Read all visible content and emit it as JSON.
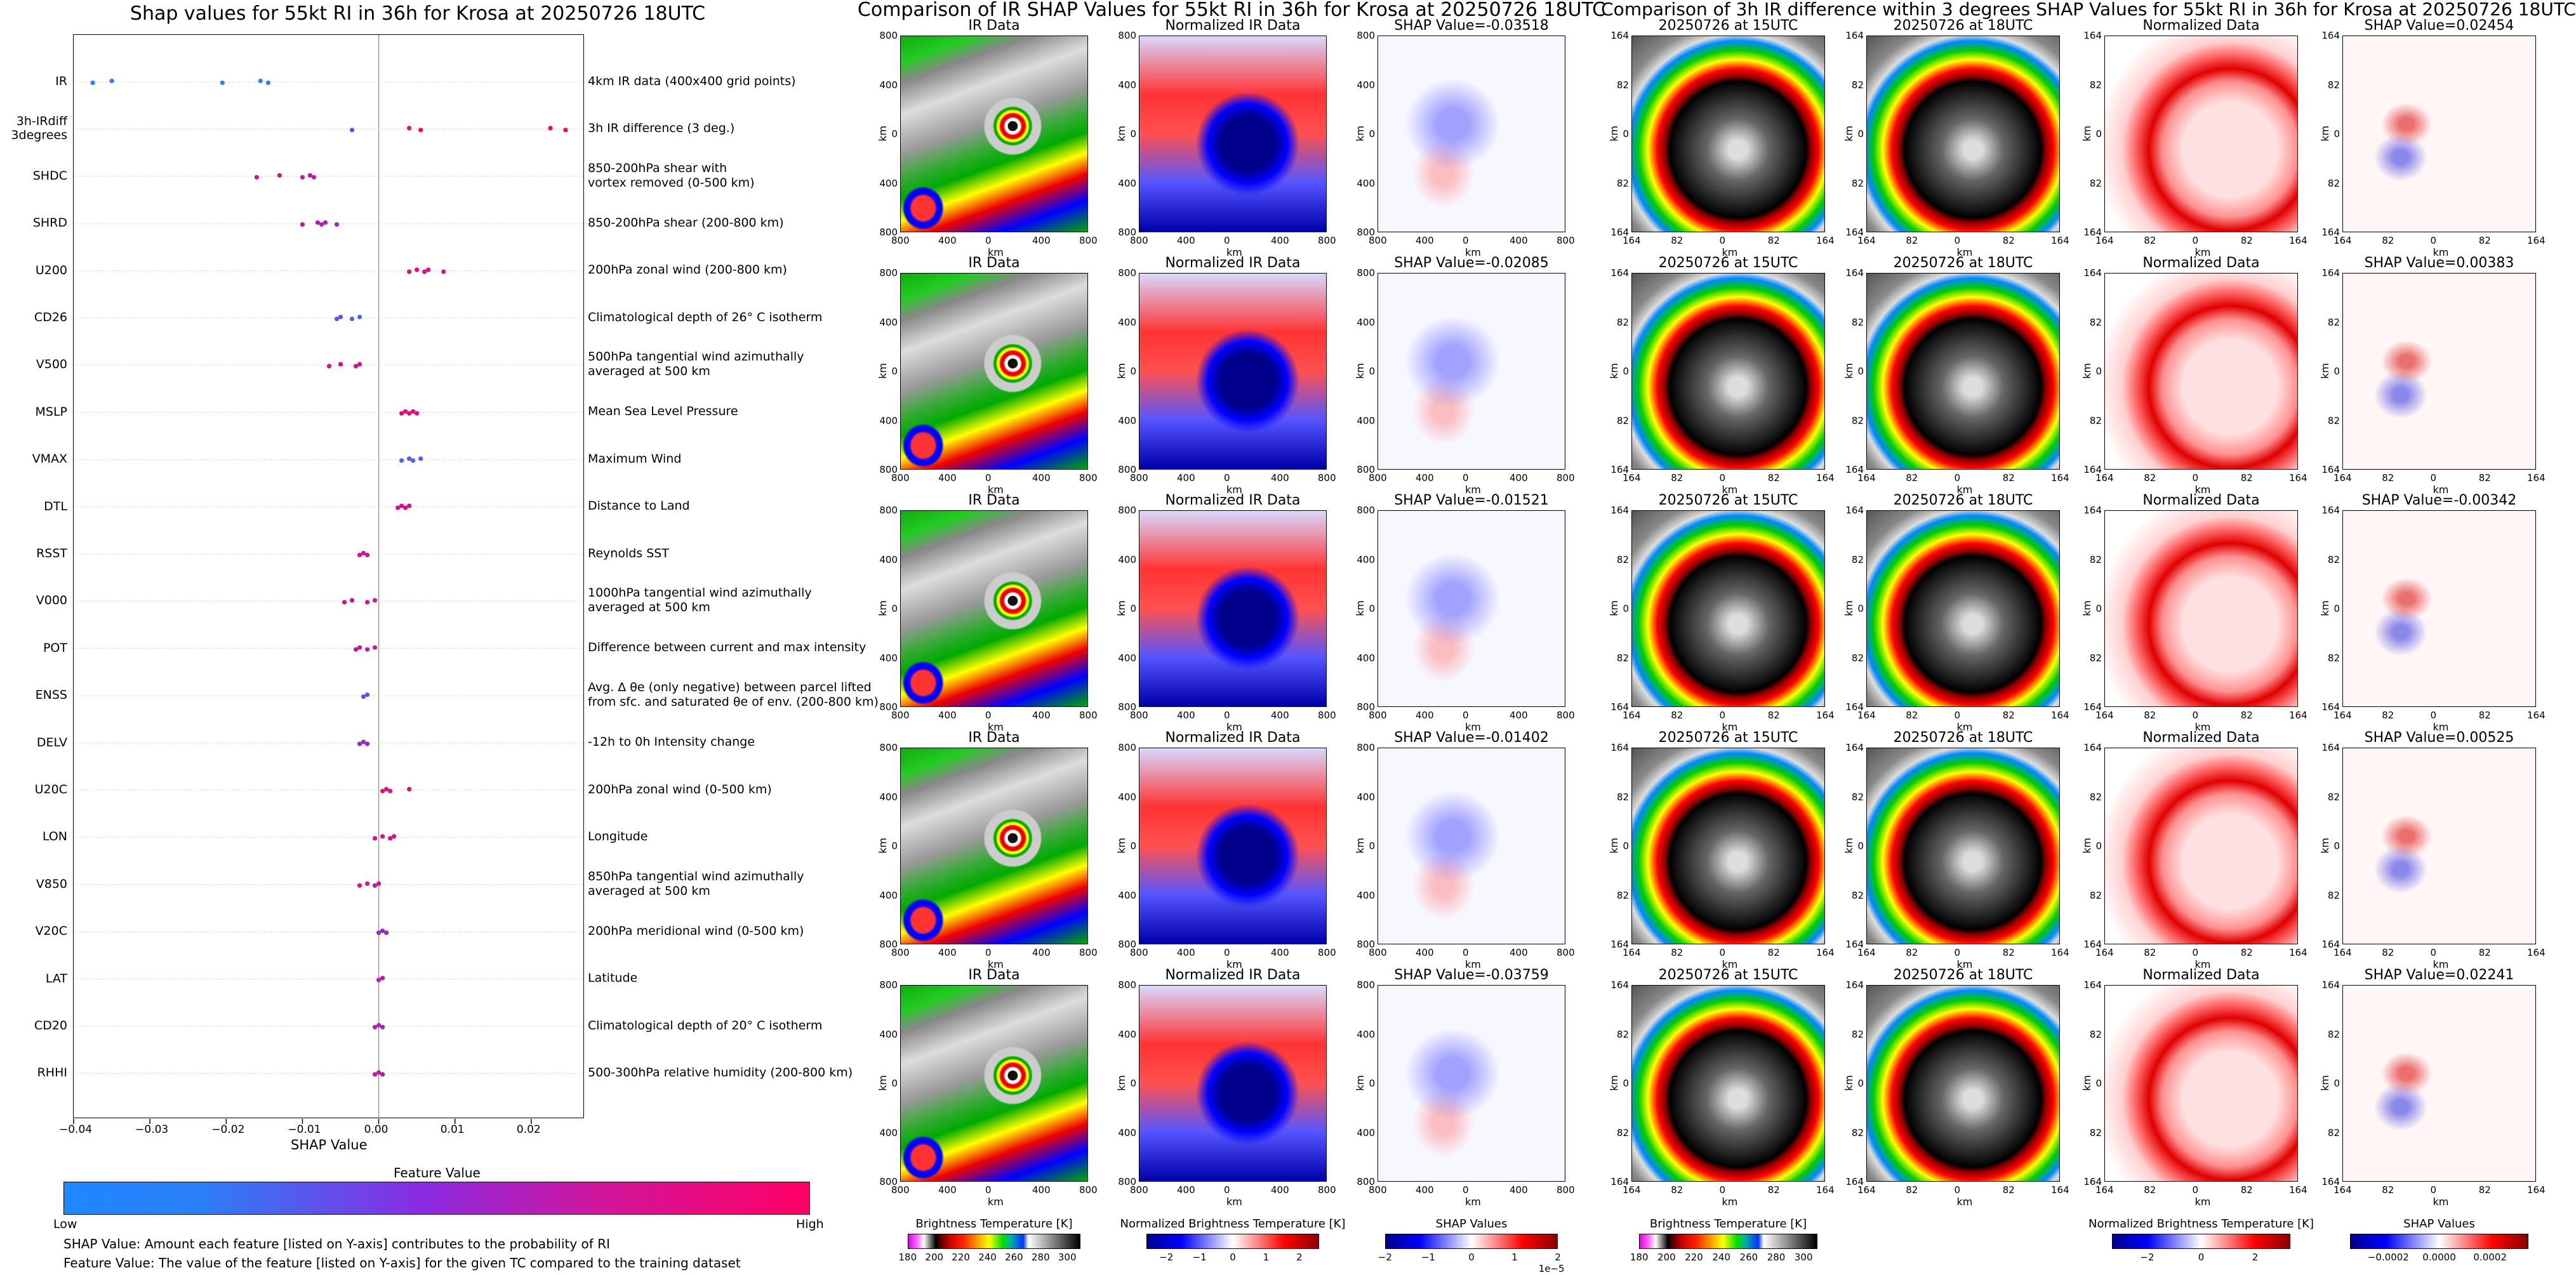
{
  "chart_data": [
    {
      "type": "scatter",
      "title": "Shap values for 55kt RI in 36h for Krosa at 20250726 18UTC",
      "xlabel": "SHAP Value",
      "xlim": [
        -0.04,
        0.027
      ],
      "x_ticks": [
        "−0.04",
        "−0.03",
        "−0.02",
        "−0.01",
        "0.00",
        "0.01",
        "0.02"
      ],
      "x_tick_values": [
        -0.04,
        -0.03,
        -0.02,
        -0.01,
        0.0,
        0.01,
        0.02
      ],
      "features": [
        {
          "name": "IR",
          "desc": "4km IR data (400x400 grid points)",
          "points": [
            [
              -0.0375,
              0.0
            ],
            [
              -0.035,
              0.1
            ],
            [
              -0.0205,
              0.0
            ],
            [
              -0.0155,
              0.0
            ],
            [
              -0.0145,
              0.05
            ]
          ]
        },
        {
          "name": "3h-IRdiff\n3degrees",
          "desc": "3h IR difference (3 deg.)",
          "points": [
            [
              -0.0035,
              0.35
            ],
            [
              0.004,
              0.9
            ],
            [
              0.0055,
              0.95
            ],
            [
              0.0225,
              1.0
            ],
            [
              0.0245,
              1.0
            ]
          ]
        },
        {
          "name": "SHDC",
          "desc": "850-200hPa shear with\nvortex removed (0-500 km)",
          "points": [
            [
              -0.016,
              0.85
            ],
            [
              -0.013,
              0.8
            ],
            [
              -0.01,
              0.75
            ],
            [
              -0.009,
              0.75
            ],
            [
              -0.0085,
              0.7
            ]
          ]
        },
        {
          "name": "SHRD",
          "desc": "850-200hPa shear (200-800 km)",
          "points": [
            [
              -0.01,
              0.8
            ],
            [
              -0.008,
              0.7
            ],
            [
              -0.0075,
              0.7
            ],
            [
              -0.007,
              0.65
            ],
            [
              -0.0055,
              0.6
            ]
          ]
        },
        {
          "name": "U200",
          "desc": "200hPa zonal wind (200-800 km)",
          "points": [
            [
              0.004,
              0.95
            ],
            [
              0.005,
              0.9
            ],
            [
              0.006,
              0.9
            ],
            [
              0.0065,
              0.85
            ],
            [
              0.0085,
              0.8
            ]
          ]
        },
        {
          "name": "CD26",
          "desc": "Climatological depth of 26° C isotherm",
          "points": [
            [
              -0.0055,
              0.25
            ],
            [
              -0.005,
              0.3
            ],
            [
              -0.0035,
              0.2
            ],
            [
              -0.0025,
              0.15
            ]
          ]
        },
        {
          "name": "V500",
          "desc": "500hPa tangential wind azimuthally\naveraged at 500 km",
          "points": [
            [
              -0.0065,
              0.85
            ],
            [
              -0.005,
              0.9
            ],
            [
              -0.003,
              0.85
            ],
            [
              -0.0025,
              0.8
            ]
          ]
        },
        {
          "name": "MSLP",
          "desc": "Mean Sea Level Pressure",
          "points": [
            [
              0.003,
              0.9
            ],
            [
              0.0035,
              0.9
            ],
            [
              0.004,
              0.9
            ],
            [
              0.0045,
              0.85
            ],
            [
              0.005,
              0.85
            ]
          ]
        },
        {
          "name": "VMAX",
          "desc": "Maximum Wind",
          "points": [
            [
              0.003,
              0.2
            ],
            [
              0.004,
              0.25
            ],
            [
              0.0045,
              0.15
            ],
            [
              0.0055,
              0.2
            ]
          ]
        },
        {
          "name": "DTL",
          "desc": "Distance to Land",
          "points": [
            [
              0.0025,
              0.85
            ],
            [
              0.003,
              0.9
            ],
            [
              0.0035,
              0.85
            ],
            [
              0.004,
              0.9
            ]
          ]
        },
        {
          "name": "RSST",
          "desc": "Reynolds SST",
          "points": [
            [
              -0.0025,
              0.85
            ],
            [
              -0.002,
              0.8
            ],
            [
              -0.0015,
              0.8
            ]
          ]
        },
        {
          "name": "V000",
          "desc": "1000hPa tangential wind azimuthally\naveraged at 500 km",
          "points": [
            [
              -0.0045,
              0.8
            ],
            [
              -0.0035,
              0.85
            ],
            [
              -0.0015,
              0.8
            ],
            [
              -0.0005,
              0.75
            ]
          ]
        },
        {
          "name": "POT",
          "desc": "Difference between current and max intensity",
          "points": [
            [
              -0.003,
              0.75
            ],
            [
              -0.0025,
              0.8
            ],
            [
              -0.0015,
              0.7
            ],
            [
              -0.0005,
              0.75
            ]
          ]
        },
        {
          "name": "ENSS",
          "desc": "Avg. Δ θe (only negative) between parcel lifted\nfrom sfc. and saturated θe of env. (200-800 km)",
          "points": [
            [
              -0.002,
              0.35
            ],
            [
              -0.0015,
              0.3
            ]
          ]
        },
        {
          "name": "DELV",
          "desc": "-12h to 0h Intensity change",
          "points": [
            [
              -0.0025,
              0.6
            ],
            [
              -0.002,
              0.55
            ],
            [
              -0.0015,
              0.6
            ]
          ]
        },
        {
          "name": "U20C",
          "desc": "200hPa zonal wind (0-500 km)",
          "points": [
            [
              0.0005,
              0.9
            ],
            [
              0.001,
              0.85
            ],
            [
              0.0015,
              0.9
            ],
            [
              0.004,
              0.95
            ]
          ]
        },
        {
          "name": "LON",
          "desc": "Longitude",
          "points": [
            [
              -0.0005,
              0.85
            ],
            [
              0.0005,
              0.9
            ],
            [
              0.0015,
              0.85
            ],
            [
              0.002,
              0.9
            ]
          ]
        },
        {
          "name": "V850",
          "desc": "850hPa tangential wind azimuthally\naveraged at 500 km",
          "points": [
            [
              -0.0025,
              0.8
            ],
            [
              -0.0015,
              0.85
            ],
            [
              -0.0005,
              0.75
            ],
            [
              0.0,
              0.8
            ]
          ]
        },
        {
          "name": "V20C",
          "desc": "200hPa meridional wind (0-500 km)",
          "points": [
            [
              0.0,
              0.6
            ],
            [
              0.0005,
              0.55
            ],
            [
              0.001,
              0.6
            ]
          ]
        },
        {
          "name": "LAT",
          "desc": "Latitude",
          "points": [
            [
              0.0,
              0.7
            ],
            [
              0.0005,
              0.75
            ]
          ]
        },
        {
          "name": "CD20",
          "desc": "Climatological depth of 20° C isotherm",
          "points": [
            [
              -0.0005,
              0.65
            ],
            [
              0.0,
              0.7
            ],
            [
              0.0005,
              0.65
            ]
          ]
        },
        {
          "name": "RHHI",
          "desc": "500-300hPa relative humidity (200-800 km)",
          "points": [
            [
              -0.0005,
              0.75
            ],
            [
              0.0,
              0.7
            ],
            [
              0.0005,
              0.75
            ]
          ]
        }
      ],
      "colorbar": {
        "label": "Feature Value",
        "low": "Low",
        "high": "High",
        "colors": [
          "#1e88ff",
          "#8a2be2",
          "#ff0064"
        ]
      }
    },
    {
      "type": "heatmap",
      "title": "Comparison of IR SHAP Values for 55kt RI in 36h for Krosa at 20250726 18UTC",
      "columns": [
        {
          "titles": [
            "IR Data",
            "IR Data",
            "IR Data",
            "IR Data",
            "IR Data"
          ]
        },
        {
          "titles": [
            "Normalized IR Data",
            "Normalized IR Data",
            "Normalized IR Data",
            "Normalized IR Data",
            "Normalized IR Data"
          ]
        },
        {
          "titles": [
            "SHAP Value=-0.03518",
            "SHAP Value=-0.02085",
            "SHAP Value=-0.01521",
            "SHAP Value=-0.01402",
            "SHAP Value=-0.03759"
          ]
        }
      ],
      "axis": {
        "xlabel": "km",
        "ylabel": "km",
        "xticks": [
          "800",
          "400",
          "0",
          "400",
          "800"
        ],
        "yticks": [
          "800",
          "400",
          "0",
          "400",
          "800"
        ]
      },
      "colorbars": [
        {
          "label": "Brightness Temperature [K]",
          "ticks": [
            "180",
            "200",
            "220",
            "240",
            "260",
            "280",
            "300"
          ],
          "tick_values": [
            180,
            200,
            220,
            240,
            260,
            280,
            300
          ],
          "range": [
            180,
            310
          ]
        },
        {
          "label": "Normalized Brightness Temperature [K]",
          "ticks": [
            "−2",
            "−1",
            "0",
            "1",
            "2"
          ],
          "tick_values": [
            -2,
            -1,
            0,
            1,
            2
          ],
          "range": [
            -2.6,
            2.6
          ]
        },
        {
          "label": "SHAP Values",
          "ticks": [
            "−2",
            "−1",
            "0",
            "1",
            "2"
          ],
          "tick_values": [
            -2,
            -1,
            0,
            1,
            2
          ],
          "range": [
            -2,
            2
          ],
          "multiplier": "1e−5"
        }
      ]
    },
    {
      "type": "heatmap",
      "title": "Comparison of 3h IR difference within 3 degrees SHAP Values for 55kt RI in 36h for Krosa at 20250726 18UTC",
      "columns": [
        {
          "titles": [
            "20250726 at 15UTC",
            "20250726 at 15UTC",
            "20250726 at 15UTC",
            "20250726 at 15UTC",
            "20250726 at 15UTC"
          ]
        },
        {
          "titles": [
            "20250726 at 18UTC",
            "20250726 at 18UTC",
            "20250726 at 18UTC",
            "20250726 at 18UTC",
            "20250726 at 18UTC"
          ]
        },
        {
          "titles": [
            "Normalized Data",
            "Normalized Data",
            "Normalized Data",
            "Normalized Data",
            "Normalized Data"
          ]
        },
        {
          "titles": [
            "SHAP Value=0.02454",
            "SHAP Value=0.00383",
            "SHAP Value=-0.00342",
            "SHAP Value=0.00525",
            "SHAP Value=0.02241"
          ]
        }
      ],
      "axis": {
        "xlabel": "km",
        "ylabel": "km",
        "xticks": [
          "164",
          "82",
          "0",
          "82",
          "164"
        ],
        "yticks": [
          "164",
          "82",
          "0",
          "82",
          "164"
        ]
      },
      "colorbars": [
        {
          "label": "Brightness Temperature [K]",
          "ticks": [
            "180",
            "200",
            "220",
            "240",
            "260",
            "280",
            "300"
          ],
          "tick_values": [
            180,
            200,
            220,
            240,
            260,
            280,
            300
          ],
          "range": [
            180,
            310
          ]
        },
        {
          "label": "Normalized Brightness Temperature [K]",
          "ticks": [
            "−2",
            "0",
            "2"
          ],
          "tick_values": [
            -2,
            0,
            2
          ],
          "range": [
            -3.3,
            3.3
          ]
        },
        {
          "label": "SHAP Values",
          "ticks": [
            "−0.0002",
            "0.0000",
            "0.0002"
          ],
          "tick_values": [
            -0.0002,
            0,
            0.0002
          ],
          "range": [
            -0.00035,
            0.00035
          ]
        }
      ]
    }
  ],
  "notes": {
    "line1": "SHAP Value: Amount each feature [listed on Y-axis] contributes to the probability of RI",
    "line2": "Feature Value: The value of the feature [listed on Y-axis] for the given TC compared to the training dataset"
  }
}
